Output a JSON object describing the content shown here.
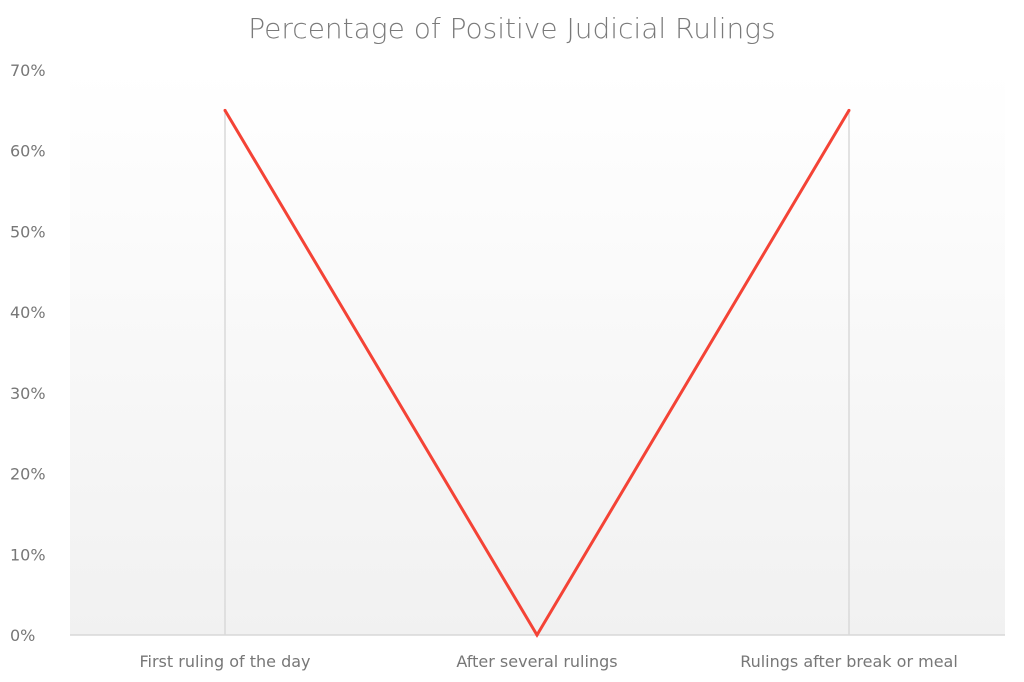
{
  "chart_data": {
    "type": "line",
    "title": "Percentage of Positive Judicial Rulings",
    "categories": [
      "First ruling of the day",
      "After several rulings",
      "Rulings after break or meal"
    ],
    "series": [
      {
        "values": [
          65,
          0,
          65
        ],
        "color": "#f44336"
      }
    ],
    "ylim": [
      0,
      70
    ],
    "yticks": [
      "0%",
      "10%",
      "20%",
      "30%",
      "40%",
      "50%",
      "60%",
      "70%"
    ],
    "grid": false,
    "drop_lines": true,
    "background": "gradient white to light gray"
  }
}
